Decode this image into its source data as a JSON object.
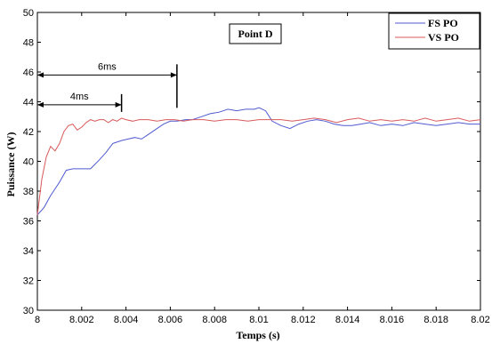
{
  "chart_data": {
    "type": "line",
    "title": "",
    "xlabel": "Temps (s)",
    "ylabel": "Puissance (W)",
    "xlim": [
      8,
      8.02
    ],
    "ylim": [
      30,
      50
    ],
    "grid": false,
    "xticks": [
      "8",
      "8.002",
      "8.004",
      "8.006",
      "8.008",
      "8.01",
      "8.012",
      "8.014",
      "8.016",
      "8.018",
      "8.02"
    ],
    "yticks": [
      "30",
      "32",
      "34",
      "36",
      "38",
      "40",
      "42",
      "44",
      "46",
      "48",
      "50"
    ],
    "legend_position": "top-right",
    "annotation_box": "Point D",
    "annotations": [
      {
        "label": "6ms",
        "x_from": 8.0,
        "x_to": 8.0063,
        "y": 45.8
      },
      {
        "label": "4ms",
        "x_from": 8.0,
        "x_to": 8.0038,
        "y": 43.8
      }
    ],
    "series": [
      {
        "name": "FS PO",
        "color": "#4f5ad0",
        "x": [
          8.0,
          8.0003,
          8.0006,
          8.001,
          8.0013,
          8.0016,
          8.002,
          8.0024,
          8.0028,
          8.0031,
          8.0034,
          8.0038,
          8.0041,
          8.0044,
          8.0047,
          8.005,
          8.0054,
          8.0057,
          8.006,
          8.0063,
          8.0067,
          8.007,
          8.0074,
          8.0078,
          8.0082,
          8.0086,
          8.009,
          8.0094,
          8.0098,
          8.01,
          8.0103,
          8.0106,
          8.011,
          8.0114,
          8.0118,
          8.0122,
          8.0126,
          8.013,
          8.0134,
          8.0138,
          8.0142,
          8.0146,
          8.015,
          8.0155,
          8.016,
          8.0165,
          8.017,
          8.0175,
          8.018,
          8.0185,
          8.019,
          8.0195,
          8.02
        ],
        "y": [
          36.4,
          36.9,
          37.7,
          38.6,
          39.4,
          39.5,
          39.5,
          39.5,
          40.1,
          40.6,
          41.2,
          41.4,
          41.5,
          41.6,
          41.5,
          41.8,
          42.2,
          42.5,
          42.7,
          42.7,
          42.8,
          42.8,
          43.0,
          43.2,
          43.3,
          43.5,
          43.4,
          43.5,
          43.5,
          43.6,
          43.4,
          42.7,
          42.4,
          42.2,
          42.5,
          42.7,
          42.8,
          42.7,
          42.5,
          42.4,
          42.4,
          42.5,
          42.6,
          42.4,
          42.5,
          42.4,
          42.6,
          42.5,
          42.4,
          42.5,
          42.6,
          42.5,
          42.5
        ]
      },
      {
        "name": "VS PO",
        "color": "#d85a5a",
        "x": [
          8.0,
          8.0002,
          8.0004,
          8.0006,
          8.0008,
          8.001,
          8.0012,
          8.0014,
          8.0016,
          8.0018,
          8.002,
          8.0022,
          8.0024,
          8.0026,
          8.0028,
          8.003,
          8.0032,
          8.0034,
          8.0036,
          8.0038,
          8.004,
          8.0043,
          8.0046,
          8.005,
          8.0054,
          8.0058,
          8.0062,
          8.0066,
          8.007,
          8.0075,
          8.008,
          8.0085,
          8.009,
          8.0095,
          8.01,
          8.0105,
          8.011,
          8.0115,
          8.012,
          8.0125,
          8.013,
          8.0135,
          8.014,
          8.0145,
          8.015,
          8.0155,
          8.016,
          8.0165,
          8.017,
          8.0175,
          8.018,
          8.0185,
          8.019,
          8.0195,
          8.02
        ],
        "y": [
          36.4,
          38.8,
          40.3,
          41.0,
          40.7,
          41.2,
          42.0,
          42.4,
          42.5,
          42.1,
          42.3,
          42.6,
          42.8,
          42.7,
          42.8,
          42.8,
          42.6,
          42.8,
          42.7,
          42.9,
          42.8,
          42.7,
          42.8,
          42.8,
          42.7,
          42.8,
          42.8,
          42.7,
          42.8,
          42.8,
          42.7,
          42.8,
          42.8,
          42.7,
          42.8,
          42.8,
          42.8,
          42.7,
          42.8,
          42.9,
          42.8,
          42.6,
          42.8,
          42.9,
          42.7,
          42.8,
          42.7,
          42.8,
          42.7,
          42.9,
          42.7,
          42.8,
          42.9,
          42.7,
          42.8
        ]
      }
    ]
  }
}
